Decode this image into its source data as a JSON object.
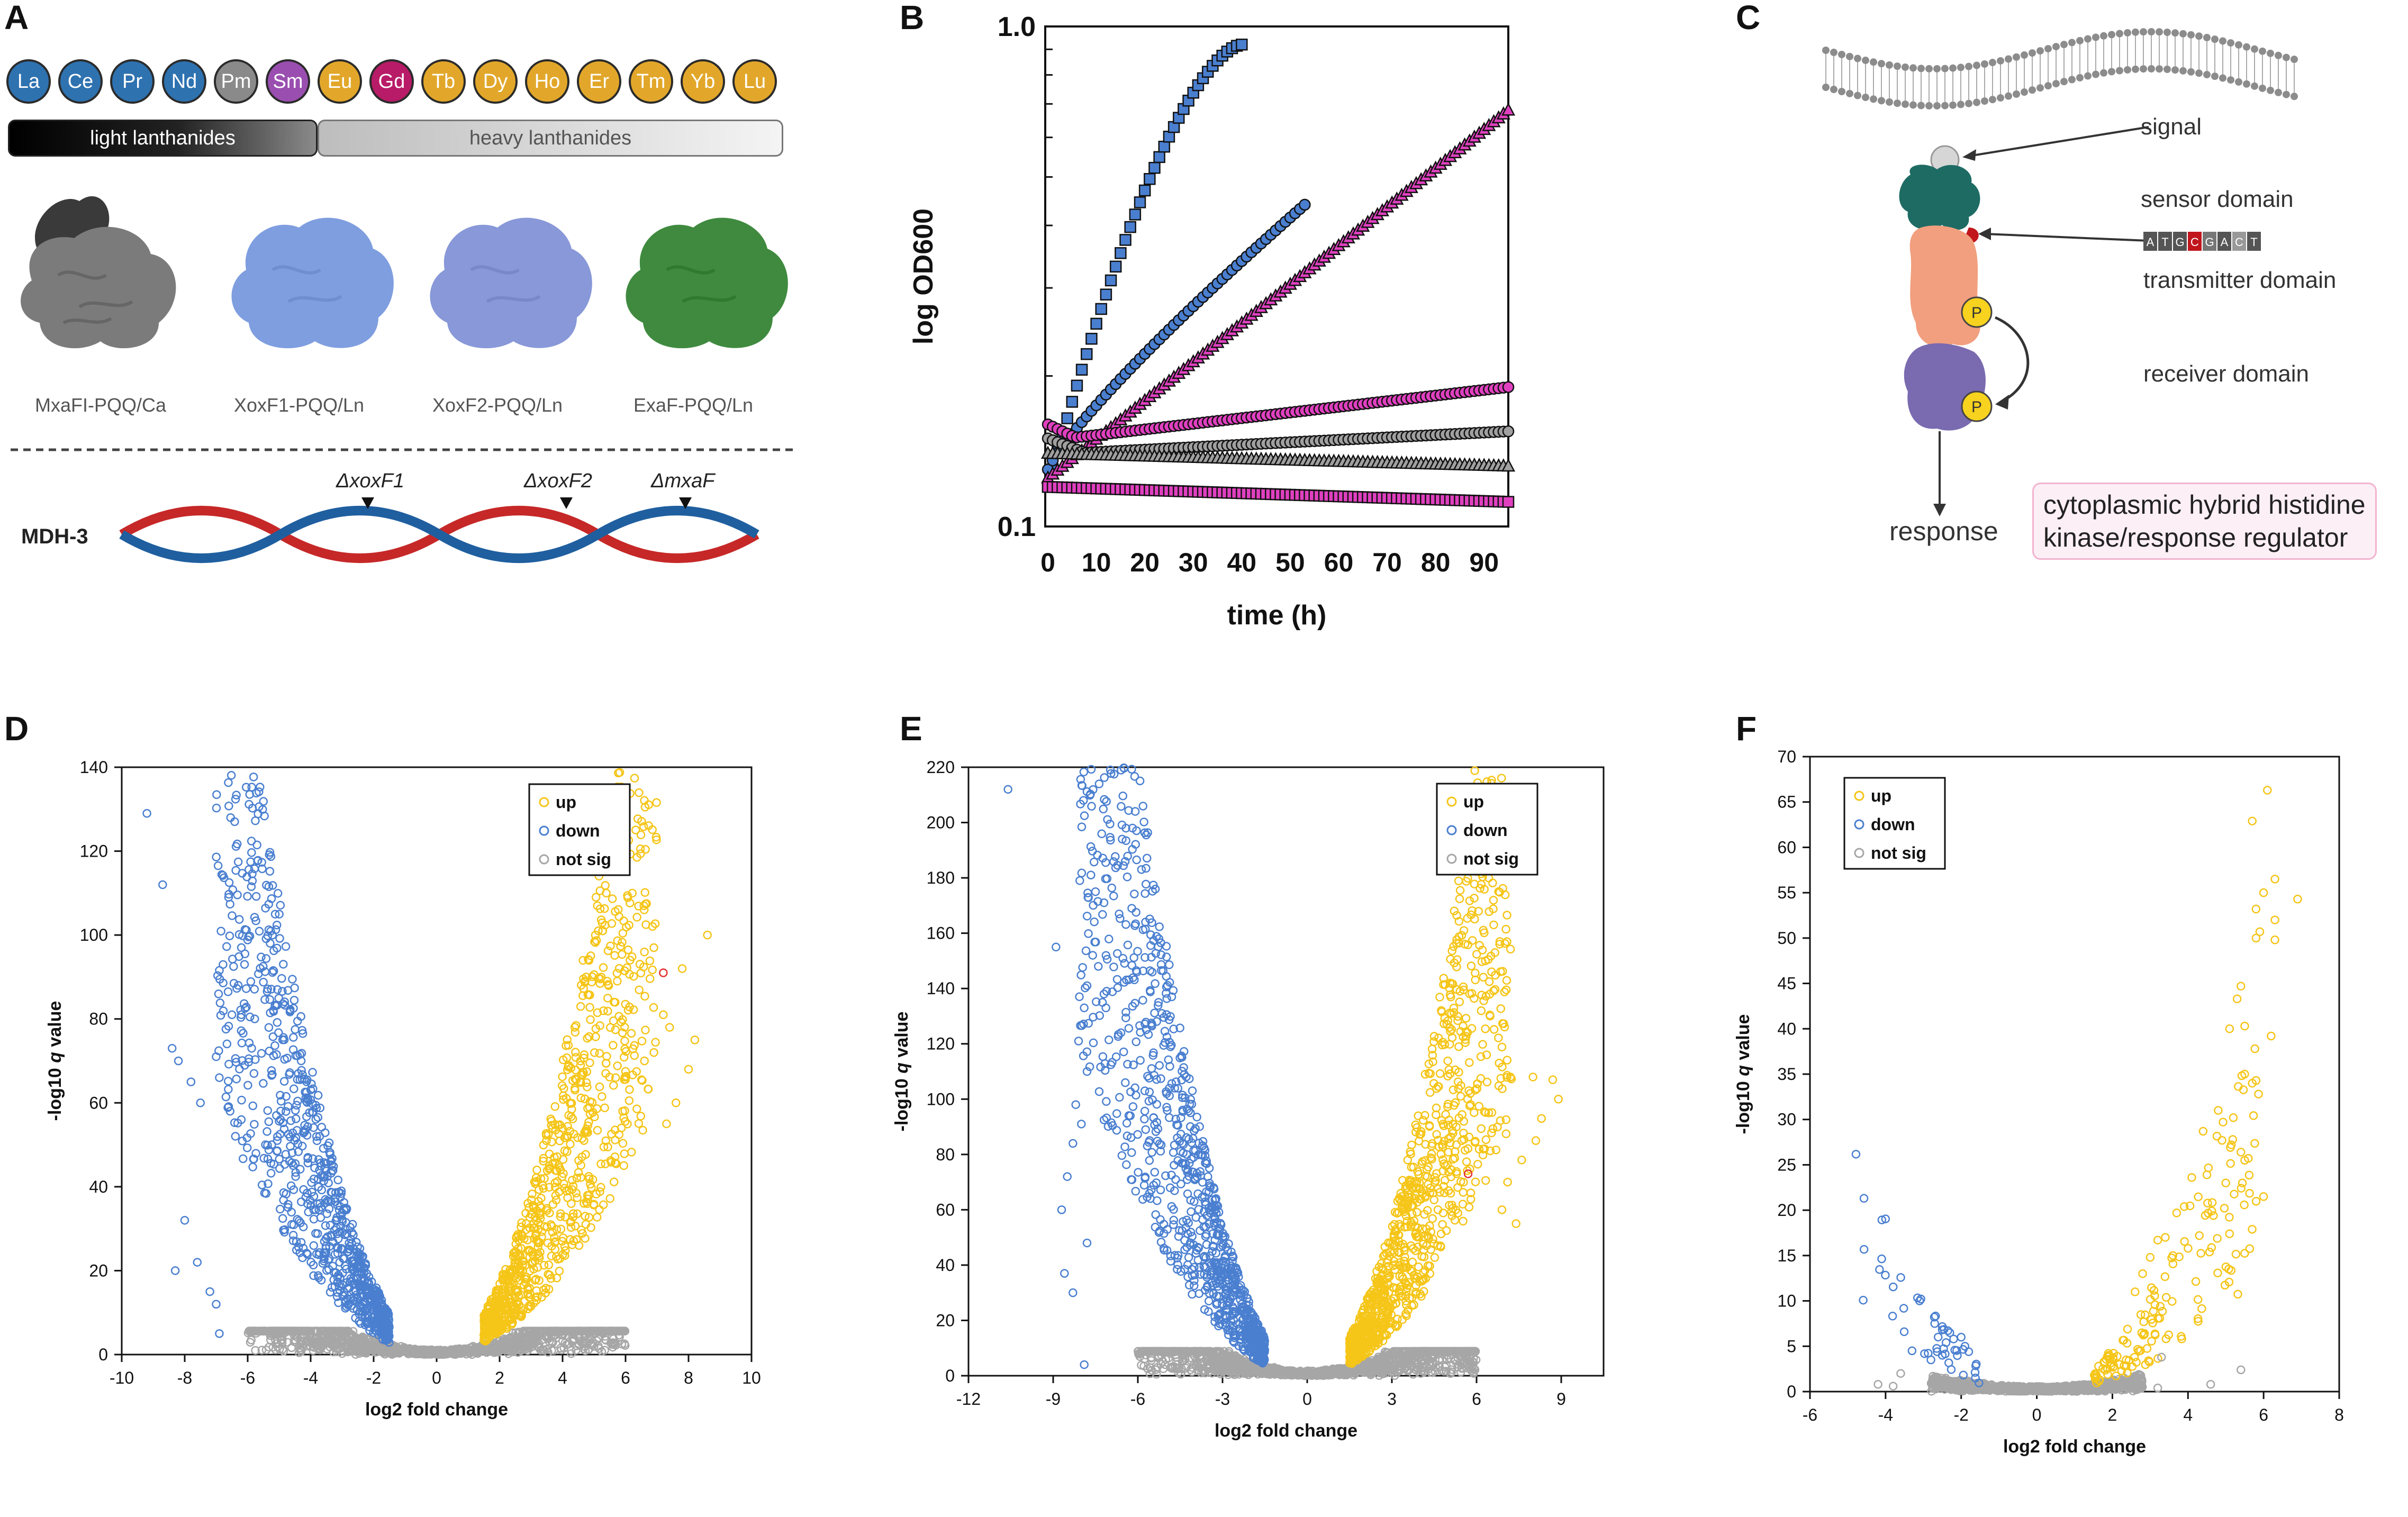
{
  "panel_letters": {
    "a": "A",
    "b": "B",
    "c": "C",
    "d": "D",
    "e": "E",
    "f": "F"
  },
  "panelA": {
    "elements": [
      {
        "symbol": "La",
        "color": "#2e72b0"
      },
      {
        "symbol": "Ce",
        "color": "#2e72b0"
      },
      {
        "symbol": "Pr",
        "color": "#2e72b0"
      },
      {
        "symbol": "Nd",
        "color": "#2e72b0"
      },
      {
        "symbol": "Pm",
        "color": "#8a8a8a"
      },
      {
        "symbol": "Sm",
        "color": "#9a4fb0"
      },
      {
        "symbol": "Eu",
        "color": "#e2a72a"
      },
      {
        "symbol": "Gd",
        "color": "#b81b67"
      },
      {
        "symbol": "Tb",
        "color": "#e2a72a"
      },
      {
        "symbol": "Dy",
        "color": "#e2a72a"
      },
      {
        "symbol": "Ho",
        "color": "#e2a72a"
      },
      {
        "symbol": "Er",
        "color": "#e2a72a"
      },
      {
        "symbol": "Tm",
        "color": "#e2a72a"
      },
      {
        "symbol": "Yb",
        "color": "#e2a72a"
      },
      {
        "symbol": "Lu",
        "color": "#e2a72a"
      }
    ],
    "light_label": "light lanthanides",
    "heavy_label": "heavy lanthanides",
    "enzymes": [
      {
        "label": "MxaFI-PQQ/Ca",
        "color": "#7f7f7f"
      },
      {
        "label": "XoxF1-PQQ/Ln",
        "color": "#7f9ee0"
      },
      {
        "label": "XoxF2-PQQ/Ln",
        "color": "#8898d8"
      },
      {
        "label": "ExaF-PQQ/Ln",
        "color": "#3f8a3f"
      }
    ],
    "mdh_label": "MDH-3",
    "mutations": [
      "ΔxoxF1",
      "ΔxoxF2",
      "ΔmxaF"
    ]
  },
  "panelC": {
    "signal": "signal",
    "sensor": "sensor domain",
    "transmitter": "transmitter domain",
    "receiver": "receiver domain",
    "response": "response",
    "phospho": "P",
    "box_line1": "cytoplasmic hybrid histidine",
    "box_line2": "kinase/response regulator",
    "dna_seq": [
      "A",
      "T",
      "G",
      "C",
      "G",
      "A",
      "C",
      "T"
    ]
  },
  "chart_data": [
    {
      "id": "B",
      "type": "scatter",
      "title": "",
      "xlabel": "time (h)",
      "ylabel": "log OD600",
      "xlim": [
        0,
        95
      ],
      "ylim": [
        0.1,
        1.0
      ],
      "yscale": "log",
      "xticks": [
        0,
        10,
        20,
        30,
        40,
        50,
        60,
        70,
        80,
        90
      ],
      "yticks": [
        {
          "v": 1.0,
          "label": "1.0"
        },
        {
          "v": 0.1,
          "label": "0.1"
        }
      ],
      "series": [
        {
          "name": "blue squares",
          "marker": "square",
          "color": "#4a7fd0",
          "x0": 0,
          "x1": 40,
          "y0": 0.12,
          "y1": 0.92,
          "shape": "sat"
        },
        {
          "name": "blue circles",
          "marker": "circle",
          "color": "#4a7fd0",
          "x0": 0,
          "x1": 53,
          "y0": 0.13,
          "y1": 0.44,
          "shape": "sat2"
        },
        {
          "name": "magenta triangles",
          "marker": "triangle",
          "color": "#e040c0",
          "x0": 0,
          "x1": 95,
          "y0": 0.125,
          "y1": 0.68,
          "shape": "exp"
        },
        {
          "name": "magenta circles",
          "marker": "circle",
          "color": "#e040c0",
          "x0": 0,
          "x1": 95,
          "y0": 0.16,
          "y1": 0.19,
          "shape": "dip"
        },
        {
          "name": "grey circles",
          "marker": "circle",
          "color": "#a0a0a0",
          "x0": 0,
          "x1": 95,
          "y0": 0.15,
          "y1": 0.155,
          "shape": "dipg"
        },
        {
          "name": "grey triangles",
          "marker": "triangle",
          "color": "#a0a0a0",
          "x0": 0,
          "x1": 95,
          "y0": 0.14,
          "y1": 0.132,
          "shape": "flatdip"
        },
        {
          "name": "magenta squares",
          "marker": "square",
          "color": "#e040c0",
          "x0": 0,
          "x1": 95,
          "y0": 0.12,
          "y1": 0.112,
          "shape": "decay"
        }
      ]
    },
    {
      "id": "D",
      "type": "scatter",
      "xlabel": "log2 fold change",
      "ylabel": "-log10 q value",
      "xlim": [
        -10,
        10
      ],
      "ylim": [
        0,
        140
      ],
      "xticks": [
        -10,
        -8,
        -6,
        -4,
        -2,
        0,
        2,
        4,
        6,
        8,
        10
      ],
      "yticks": [
        0,
        20,
        40,
        60,
        80,
        100,
        120,
        140
      ],
      "legend": [
        "up",
        "down",
        "not sig"
      ],
      "colors": {
        "up": "#f5c518",
        "down": "#4a7fd0",
        "notsig": "#a6a6a6",
        "highlight": "#e03030"
      },
      "down_outliers": [
        [
          -9.2,
          129
        ],
        [
          -8.7,
          112
        ],
        [
          -8.4,
          73
        ],
        [
          -8.2,
          70
        ],
        [
          -7.8,
          65
        ],
        [
          -7.5,
          60
        ],
        [
          -6.2,
          97
        ],
        [
          -6.1,
          93
        ],
        [
          -6.3,
          88
        ],
        [
          -6.5,
          81
        ],
        [
          -6.2,
          81
        ],
        [
          -5.8,
          67
        ],
        [
          -7.0,
          71
        ],
        [
          -6.9,
          66
        ],
        [
          -8.3,
          20
        ],
        [
          -8.0,
          32
        ],
        [
          -7.6,
          22
        ],
        [
          -7.2,
          15
        ],
        [
          -7.0,
          12
        ],
        [
          -6.9,
          5
        ]
      ],
      "up_outliers": [
        [
          8.6,
          100
        ],
        [
          7.8,
          92
        ],
        [
          7.4,
          78
        ],
        [
          7.2,
          81
        ],
        [
          8.2,
          75
        ],
        [
          8.0,
          68
        ],
        [
          6.9,
          72
        ],
        [
          6.6,
          70
        ],
        [
          7.6,
          60
        ],
        [
          7.3,
          55
        ]
      ],
      "highlight": [
        7.2,
        91
      ],
      "k": 3.5,
      "sig_thresh": 1.5,
      "n_down": 900,
      "n_up": 900,
      "n_ns": 1300,
      "nslim": [
        -6,
        6
      ]
    },
    {
      "id": "E",
      "type": "scatter",
      "xlabel": "log2 fold change",
      "ylabel": "-log10 q value",
      "xlim": [
        -12,
        10.5
      ],
      "ylim": [
        0,
        220
      ],
      "xticks": [
        -12,
        -9,
        -6,
        -3,
        0,
        3,
        6,
        9
      ],
      "yticks": [
        0,
        20,
        40,
        60,
        80,
        100,
        120,
        140,
        160,
        180,
        200,
        220
      ],
      "legend": [
        "up",
        "down",
        "not sig"
      ],
      "colors": {
        "up": "#f5c518",
        "down": "#4a7fd0",
        "notsig": "#a6a6a6",
        "highlight": "#e03030"
      },
      "down_outliers": [
        [
          -10.6,
          212
        ],
        [
          -7.5,
          175
        ],
        [
          -7.2,
          171
        ],
        [
          -8.9,
          155
        ],
        [
          -7.6,
          152
        ],
        [
          -7.4,
          148
        ],
        [
          -7.8,
          141
        ],
        [
          -7.2,
          138
        ],
        [
          -7.9,
          133
        ],
        [
          -8.1,
          121
        ],
        [
          -6.6,
          124
        ],
        [
          -7.8,
          110
        ],
        [
          -8.2,
          98
        ],
        [
          -8.0,
          91
        ],
        [
          -8.3,
          84
        ],
        [
          -8.5,
          72
        ],
        [
          -8.7,
          60
        ],
        [
          -7.8,
          48
        ],
        [
          -8.6,
          37
        ],
        [
          -8.3,
          30
        ],
        [
          -7.9,
          4
        ]
      ],
      "up_outliers": [
        [
          8.9,
          100
        ],
        [
          8.7,
          107
        ],
        [
          8.0,
          108
        ],
        [
          7.2,
          108
        ],
        [
          8.3,
          93
        ],
        [
          8.1,
          85
        ],
        [
          7.6,
          78
        ],
        [
          7.1,
          70
        ],
        [
          6.9,
          60
        ],
        [
          7.4,
          55
        ]
      ],
      "highlight": [
        5.7,
        73
      ],
      "k": 5.0,
      "sig_thresh": 1.5,
      "n_down": 1000,
      "n_up": 1000,
      "n_ns": 1400,
      "nslim": [
        -6,
        6
      ]
    },
    {
      "id": "F",
      "type": "scatter",
      "xlabel": "log2 fold change",
      "ylabel": "-log10 q value",
      "xlim": [
        -6,
        8
      ],
      "ylim": [
        0,
        70
      ],
      "xticks": [
        -6,
        -4,
        -2,
        0,
        2,
        4,
        6,
        8
      ],
      "yticks": [
        0,
        5,
        10,
        15,
        20,
        25,
        30,
        35,
        40,
        45,
        50,
        55,
        60,
        65,
        70
      ],
      "legend": [
        "up",
        "down",
        "not sig"
      ],
      "colors": {
        "up": "#f5c518",
        "down": "#4a7fd0",
        "notsig": "#a6a6a6",
        "highlight": "#e03030"
      },
      "down_outliers": [
        [
          -3.1,
          10
        ],
        [
          -2.7,
          7.5
        ],
        [
          -2.5,
          6.8
        ],
        [
          -2.3,
          6.5
        ],
        [
          -2.2,
          5.8
        ],
        [
          -2.0,
          6.0
        ],
        [
          -2.5,
          4.0
        ],
        [
          -2.8,
          3.5
        ],
        [
          -3.3,
          4.5
        ],
        [
          -1.9,
          5.0
        ],
        [
          -1.8,
          4.4
        ],
        [
          -2.4,
          5.4
        ]
      ],
      "up_outliers": [
        [
          6.1,
          66.3
        ],
        [
          5.7,
          62.9
        ],
        [
          6.3,
          56.5
        ],
        [
          6.0,
          55.0
        ],
        [
          6.9,
          54.3
        ],
        [
          5.8,
          53.2
        ],
        [
          6.3,
          52.0
        ],
        [
          5.9,
          50.7
        ],
        [
          5.8,
          50.0
        ],
        [
          6.3,
          49.8
        ],
        [
          5.4,
          44.7
        ],
        [
          5.3,
          43.3
        ],
        [
          5.5,
          40.3
        ],
        [
          5.1,
          40.0
        ],
        [
          6.2,
          39.2
        ],
        [
          5.5,
          35.0
        ],
        [
          5.8,
          34.3
        ],
        [
          5.7,
          34.0
        ],
        [
          4.8,
          31.0
        ],
        [
          5.2,
          30.2
        ],
        [
          4.4,
          28.7
        ],
        [
          4.9,
          27.7
        ],
        [
          5.4,
          26.4
        ],
        [
          5.5,
          25.5
        ],
        [
          4.1,
          23.6
        ],
        [
          5.0,
          23.0
        ],
        [
          4.5,
          23.9
        ],
        [
          6.0,
          21.5
        ],
        [
          3.9,
          20.4
        ],
        [
          3.7,
          19.7
        ],
        [
          4.3,
          17.2
        ],
        [
          3.4,
          17.0
        ],
        [
          3.2,
          16.7
        ],
        [
          3.6,
          15.0
        ],
        [
          3.0,
          14.8
        ],
        [
          2.8,
          13.0
        ],
        [
          2.6,
          11.0
        ]
      ],
      "notsig_outliers": [
        [
          -4.2,
          0.8
        ],
        [
          -3.6,
          2.0
        ],
        [
          -3.8,
          0.6
        ],
        [
          3.3,
          3.8
        ],
        [
          4.6,
          0.8
        ],
        [
          5.4,
          2.4
        ],
        [
          3.2,
          0.4
        ]
      ],
      "highlight": null,
      "k": 1.0,
      "sig_thresh": 1.5,
      "n_down": 40,
      "n_up": 140,
      "n_ns": 1000,
      "nslim": [
        -2.8,
        2.8
      ]
    }
  ]
}
